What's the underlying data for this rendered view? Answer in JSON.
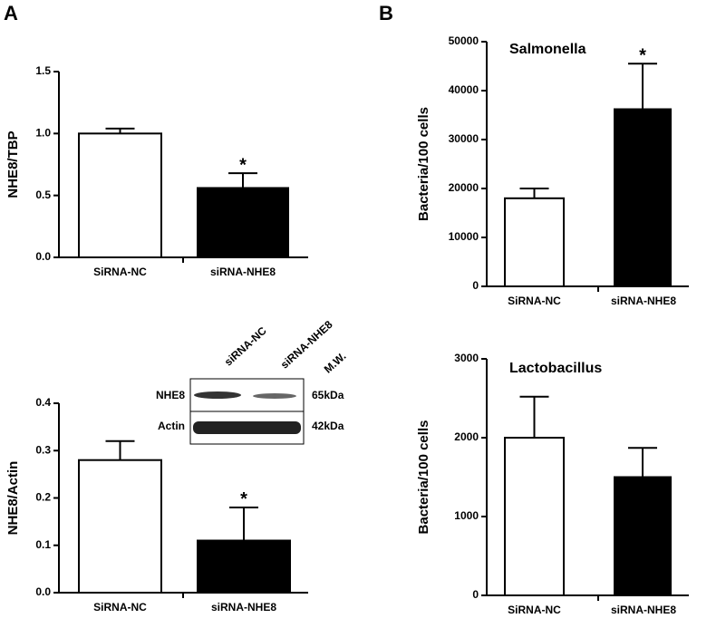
{
  "panel_labels": [
    "A",
    "B"
  ],
  "blot": {
    "lanes": [
      "siRNA-NC",
      "siRNA-NHE8"
    ],
    "mw_header": "M.W.",
    "rows": [
      {
        "label": "NHE8",
        "mw": "65kDa"
      },
      {
        "label": "Actin",
        "mw": "42kDa"
      }
    ]
  },
  "chart_data": [
    {
      "type": "bar",
      "y_label": "NHE8/TBP",
      "categories": [
        "SiRNA-NC",
        "siRNA-NHE8"
      ],
      "values": [
        1.0,
        0.56
      ],
      "errors": [
        0.04,
        0.12
      ],
      "colors": [
        "#ffffff",
        "#000000"
      ],
      "annotations": [
        null,
        "*"
      ],
      "ylim": [
        0,
        1.5
      ],
      "yticks": [
        {
          "value": 0,
          "label": "0.0"
        },
        {
          "value": 0.5,
          "label": "0.5"
        },
        {
          "value": 1,
          "label": "1.0"
        },
        {
          "value": 1.5,
          "label": "1.5"
        }
      ]
    },
    {
      "type": "bar",
      "y_label": "NHE8/Actin",
      "categories": [
        "SiRNA-NC",
        "siRNA-NHE8"
      ],
      "values": [
        0.28,
        0.11
      ],
      "errors": [
        0.04,
        0.07
      ],
      "colors": [
        "#ffffff",
        "#000000"
      ],
      "annotations": [
        null,
        "*"
      ],
      "ylim": [
        0,
        0.4
      ],
      "yticks": [
        {
          "value": 0,
          "label": "0.0"
        },
        0.1,
        0.2,
        0.3,
        0.4
      ]
    },
    {
      "type": "bar",
      "title": "Salmonella",
      "y_label": "Bacteria/100 cells",
      "categories": [
        "SiRNA-NC",
        "siRNA-NHE8"
      ],
      "values": [
        18000,
        36200
      ],
      "errors": [
        2000,
        9300
      ],
      "colors": [
        "#ffffff",
        "#000000"
      ],
      "annotations": [
        null,
        "*"
      ],
      "ylim": [
        0,
        50000
      ],
      "yticks": [
        0,
        10000,
        20000,
        30000,
        40000,
        50000
      ]
    },
    {
      "type": "bar",
      "title": "Lactobacillus",
      "y_label": "Bacteria/100 cells",
      "categories": [
        "SiRNA-NC",
        "siRNA-NHE8"
      ],
      "values": [
        2000,
        1500
      ],
      "errors": [
        520,
        370
      ],
      "colors": [
        "#ffffff",
        "#000000"
      ],
      "ylim": [
        0,
        3000
      ],
      "yticks": [
        0,
        1000,
        2000,
        3000
      ]
    }
  ]
}
